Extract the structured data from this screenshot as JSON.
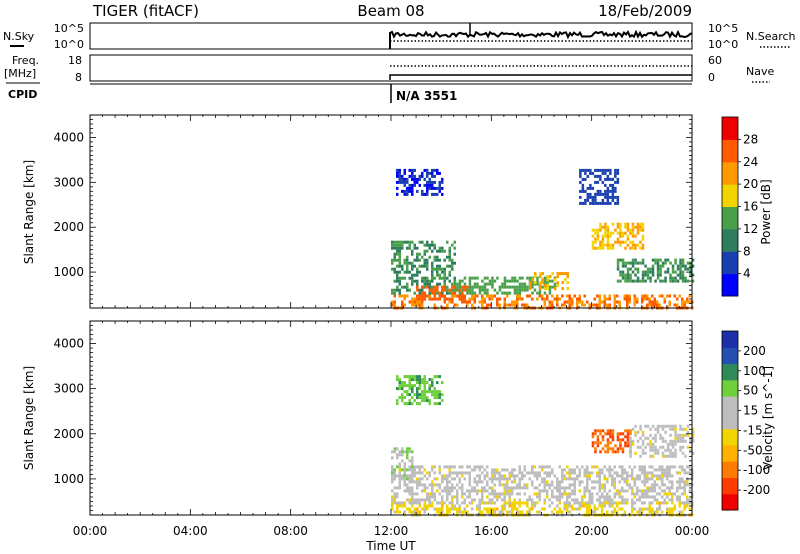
{
  "header": {
    "station": "TIGER (fitACF)",
    "beam": "Beam 08",
    "date": "18/Feb/2009"
  },
  "top_panels": {
    "nsky": {
      "left_label": "N.Sky",
      "right_label": "N.Search",
      "left_ticks": [
        "10^5",
        "10^0"
      ],
      "right_ticks": [
        "10^5",
        "10^0"
      ]
    },
    "freq": {
      "left_label_1": "Freq.",
      "left_label_2": "[MHz]",
      "right_label": "Nave",
      "left_ticks": [
        "18",
        "8"
      ],
      "right_ticks": [
        "60",
        "0"
      ]
    },
    "cpid": {
      "label": "CPID",
      "value": "N/A 3551"
    }
  },
  "colors": {
    "power_scale": [
      "#0000ff",
      "#1a3fb0",
      "#2e7d5e",
      "#4aa04a",
      "#f2d400",
      "#ff9900",
      "#ff5a00",
      "#ee0000"
    ],
    "velocity_scale": [
      "#ee0000",
      "#ff3c00",
      "#ff7a00",
      "#ffb000",
      "#f2d400",
      "#bdbdbd",
      "#bdbdbd",
      "#6fcf3d",
      "#2e8b57",
      "#2550b0",
      "#1a2fa8"
    ]
  },
  "chart_data": [
    {
      "type": "heatmap",
      "name": "power",
      "ylabel": "Slant Range [km]",
      "yticks": [
        "1000",
        "2000",
        "3000",
        "4000"
      ],
      "ylim": [
        200,
        4500
      ],
      "xlim": [
        0,
        24
      ],
      "colorbar_label": "Power [dB]",
      "colorbar_ticks": [
        "4",
        "8",
        "12",
        "16",
        "20",
        "24",
        "28"
      ],
      "colorbar_range": [
        0,
        32
      ],
      "data_start_hour": 12,
      "bands": [
        {
          "x": [
            12.0,
            24.0
          ],
          "y": [
            200,
            500
          ],
          "level": 24
        },
        {
          "x": [
            12.0,
            14.5
          ],
          "y": [
            500,
            1700
          ],
          "level": 12
        },
        {
          "x": [
            13.0,
            15.0
          ],
          "y": [
            400,
            700
          ],
          "level": 26
        },
        {
          "x": [
            14.5,
            18.5
          ],
          "y": [
            500,
            900
          ],
          "level": 14
        },
        {
          "x": [
            17.5,
            19.0
          ],
          "y": [
            600,
            1000
          ],
          "level": 20
        },
        {
          "x": [
            20.0,
            22.0
          ],
          "y": [
            1500,
            2100
          ],
          "level": 20
        },
        {
          "x": [
            21.0,
            24.0
          ],
          "y": [
            800,
            1300
          ],
          "level": 12
        },
        {
          "x": [
            12.2,
            14.0
          ],
          "y": [
            2700,
            3300
          ],
          "level": 4
        },
        {
          "x": [
            19.5,
            21.0
          ],
          "y": [
            2500,
            3300
          ],
          "level": 6
        }
      ]
    },
    {
      "type": "heatmap",
      "name": "velocity",
      "ylabel": "Slant Range [km]",
      "yticks": [
        "1000",
        "2000",
        "3000",
        "4000"
      ],
      "ylim": [
        200,
        4500
      ],
      "xlim": [
        0,
        24
      ],
      "xticks": [
        "00:00",
        "04:00",
        "08:00",
        "12:00",
        "16:00",
        "20:00",
        "00:00"
      ],
      "xlabel": "Time UT",
      "colorbar_label": "Velocity [m s^-1]",
      "colorbar_ticks": [
        "200",
        "100",
        "50",
        "15",
        "-15",
        "-50",
        "-100",
        "-200"
      ],
      "colorbar_range": [
        -250,
        250
      ],
      "data_start_hour": 12,
      "bands": [
        {
          "x": [
            12.0,
            24.0
          ],
          "y": [
            200,
            500
          ],
          "level": -40
        },
        {
          "x": [
            12.0,
            24.0
          ],
          "y": [
            500,
            1300
          ],
          "level": 0
        },
        {
          "x": [
            12.0,
            12.8
          ],
          "y": [
            1000,
            1700
          ],
          "level": 60
        },
        {
          "x": [
            20.0,
            21.5
          ],
          "y": [
            1600,
            2100
          ],
          "level": -160
        },
        {
          "x": [
            21.5,
            24.0
          ],
          "y": [
            1500,
            2200
          ],
          "level": 0
        },
        {
          "x": [
            12.2,
            14.0
          ],
          "y": [
            2700,
            3300
          ],
          "level": 100
        }
      ]
    }
  ]
}
